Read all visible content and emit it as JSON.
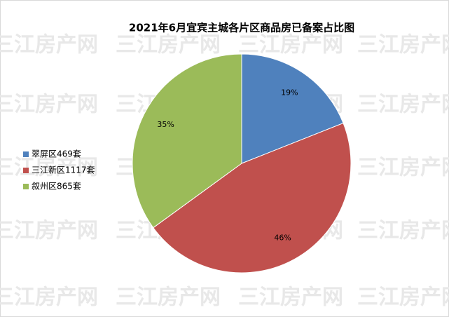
{
  "chart_data": {
    "type": "pie",
    "title": "2021年6月宜宾主城各片区商品房已备案占比图",
    "watermark": "三江房产网",
    "categories": [
      "翠屏区469套",
      "三江新区1117套",
      "叙州区865套"
    ],
    "values": [
      19,
      46,
      35
    ],
    "value_labels": [
      "19%",
      "46%",
      "35%"
    ],
    "colors": [
      "#4f81bd",
      "#c0504d",
      "#9bbb59"
    ],
    "legend": "left"
  }
}
